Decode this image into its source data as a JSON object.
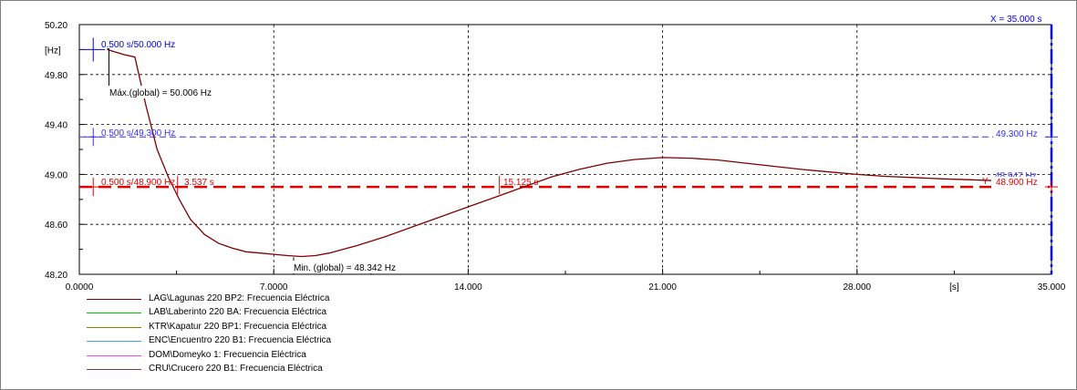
{
  "chart_data": {
    "type": "line",
    "x_unit": "[s]",
    "y_unit": "[Hz]",
    "xlim": [
      0,
      35
    ],
    "ylim": [
      48.2,
      50.2
    ],
    "x_ticks": [
      0,
      7,
      14,
      21,
      28,
      35
    ],
    "x_tick_labels": [
      "0.0000",
      "7.0000",
      "14.000",
      "21.000",
      "28.000",
      "35.000"
    ],
    "y_ticks": [
      48.2,
      48.6,
      49.0,
      49.4,
      49.8,
      50.2
    ],
    "y_tick_labels": [
      "48.20",
      "48.60",
      "49.00",
      "49.40",
      "49.80",
      "50.20"
    ],
    "grid": true,
    "series": [
      {
        "name": "LAG\\Lagunas 220 BP2: Frecuencia Eléctrica",
        "color": "#800000",
        "x": [
          1.0,
          1.3,
          1.6,
          2.0,
          2.4,
          2.8,
          3.2,
          3.6,
          4.0,
          4.5,
          5.0,
          5.5,
          6.0,
          6.5,
          7.0,
          7.5,
          8.0,
          8.5,
          9.0,
          9.5,
          10.0,
          11.0,
          12.0,
          13.0,
          14.0,
          15.0,
          16.0,
          17.0,
          18.0,
          19.0,
          20.0,
          21.0,
          22.0,
          23.0,
          24.0,
          25.0,
          26.0,
          27.0,
          28.0,
          29.0,
          30.0,
          31.0,
          32.0,
          33.0
        ],
        "y": [
          50.0,
          49.98,
          49.96,
          49.94,
          49.55,
          49.2,
          48.98,
          48.8,
          48.64,
          48.52,
          48.45,
          48.41,
          48.38,
          48.37,
          48.36,
          48.35,
          48.342,
          48.35,
          48.37,
          48.4,
          48.43,
          48.5,
          48.58,
          48.66,
          48.74,
          48.82,
          48.9,
          48.98,
          49.04,
          49.09,
          49.12,
          49.135,
          49.13,
          49.115,
          49.09,
          49.065,
          49.04,
          49.02,
          49.0,
          48.985,
          48.975,
          48.965,
          48.958,
          48.95
        ]
      },
      {
        "name": "LAB\\Laberinto 220 BA: Frecuencia Eléctrica",
        "color": "#00c000"
      },
      {
        "name": "KTR\\Kapatur 220 BP1: Frecuencia Eléctrica",
        "color": "#808000"
      },
      {
        "name": "ENC\\Encuentro 220 B1: Frecuencia Eléctrica",
        "color": "#40a0ff"
      },
      {
        "name": "DOM\\Domeyko 1: Frecuencia Eléctrica",
        "color": "#ff40ff"
      },
      {
        "name": "CRU\\Crucero 220 B1: Frecuencia Eléctrica",
        "color": "#804040"
      }
    ],
    "reference_lines": [
      {
        "axis": "y",
        "value": 49.3,
        "color": "#3030ff",
        "style": "dashed",
        "label_left": "0.500 s/49.300 Hz",
        "label_right": "49.300 Hz"
      },
      {
        "axis": "y",
        "value": 48.9,
        "color": "#e00000",
        "style": "dashed-thick",
        "label_left": "0.500 s/48.900 Hz",
        "label_right": "48.900 Hz"
      },
      {
        "axis": "x",
        "value": 35.0,
        "color": "#0000e0",
        "style": "dashdot",
        "label": "X = 35.000 s"
      }
    ],
    "cursor_markers": [
      {
        "x": 0.5,
        "y": 50.0,
        "color": "#0000e0",
        "label": "0.500 s/50.000 Hz"
      },
      {
        "x": 3.537,
        "y": 48.9,
        "color": "#e00000",
        "label": "3.537 s"
      },
      {
        "x": 15.125,
        "y": 48.9,
        "color": "#e00000",
        "label": "15.125 s"
      }
    ],
    "annotations": [
      {
        "x": 1.0,
        "y": 50.006,
        "text": "Máx.(global) = 50.006 Hz"
      },
      {
        "x": 7.8,
        "y": 48.342,
        "text": "Min. (global) = 48.342 Hz"
      },
      {
        "x": 35.0,
        "y": 48.947,
        "text": "48.947 Hz"
      },
      {
        "text": "Y"
      }
    ]
  }
}
